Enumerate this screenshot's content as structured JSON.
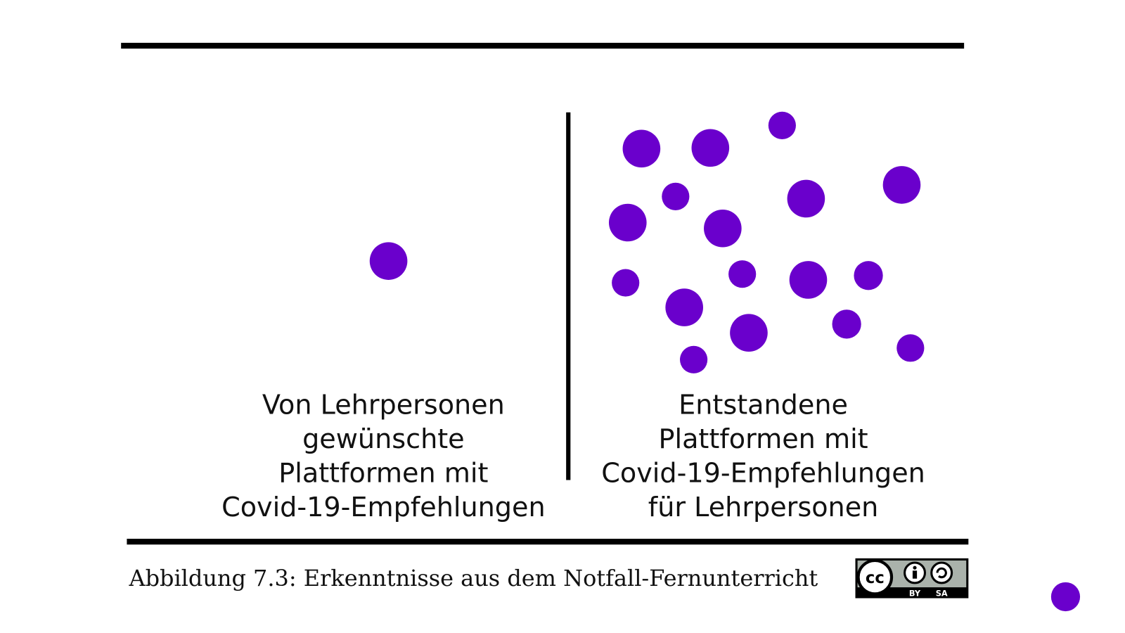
{
  "left_label": {
    "lines": [
      "Von Lehrpersonen",
      "gewünschte",
      "Plattformen mit",
      "Covid-19-Empfehlungen"
    ]
  },
  "right_label": {
    "lines": [
      "Entstandene",
      "Plattformen mit",
      "Covid-19-Empfehlungen",
      "für Lehrpersonen"
    ]
  },
  "caption": "Abbildung 7.3: Erkenntnisse aus dem Notfall-Fernunterricht",
  "license": {
    "logo": "cc",
    "by": "BY",
    "sa": "SA"
  }
}
